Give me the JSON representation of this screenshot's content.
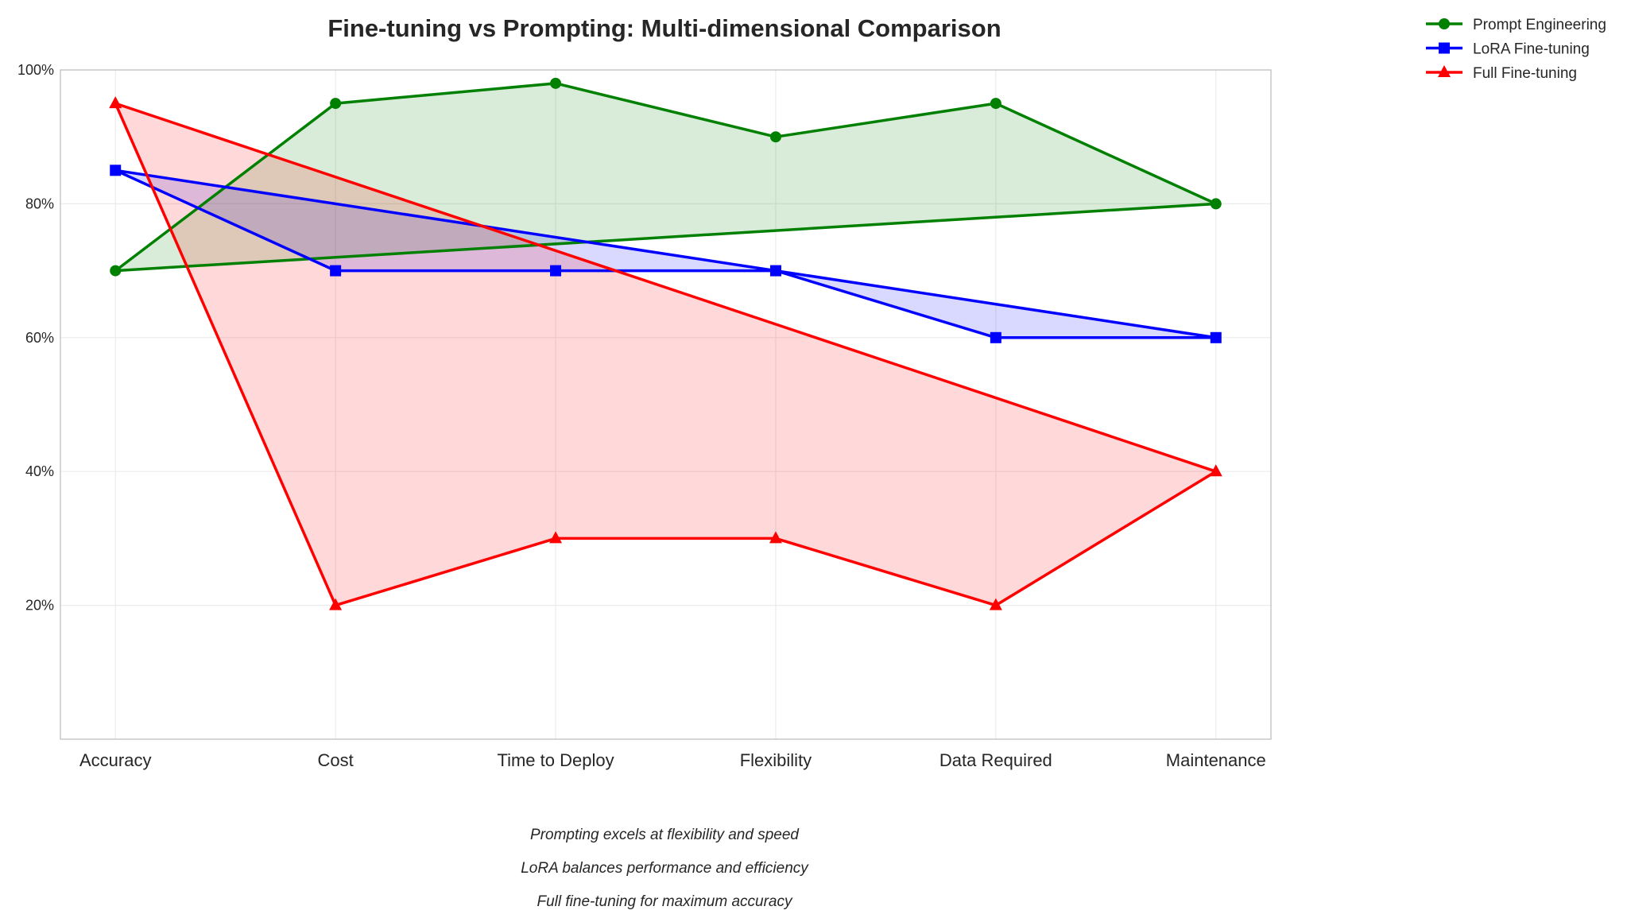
{
  "chart_data": {
    "type": "line",
    "title": "Fine-tuning vs Prompting: Multi-dimensional Comparison",
    "categories": [
      "Accuracy",
      "Cost",
      "Time to Deploy",
      "Flexibility",
      "Data Required",
      "Maintenance"
    ],
    "xlabel": "",
    "ylabel": "",
    "ylim": [
      0,
      100
    ],
    "yticks": [
      20,
      40,
      60,
      80,
      100
    ],
    "ytick_labels": [
      "20%",
      "40%",
      "60%",
      "80%",
      "100%"
    ],
    "grid": true,
    "closed_polygons": true,
    "legend_placement": "outside top-right",
    "series": [
      {
        "name": "Prompt Engineering",
        "values": [
          70,
          95,
          98,
          90,
          95,
          80
        ],
        "color": "#008000",
        "marker": "circle"
      },
      {
        "name": "LoRA Fine-tuning",
        "values": [
          85,
          70,
          70,
          70,
          60,
          60
        ],
        "color": "#0000ff",
        "marker": "square"
      },
      {
        "name": "Full Fine-tuning",
        "values": [
          95,
          20,
          30,
          30,
          20,
          40
        ],
        "color": "#ff0000",
        "marker": "triangle"
      }
    ],
    "annotations": [
      "Prompting excels at flexibility and speed",
      "LoRA balances performance and efficiency",
      "Full fine-tuning for maximum accuracy"
    ]
  }
}
